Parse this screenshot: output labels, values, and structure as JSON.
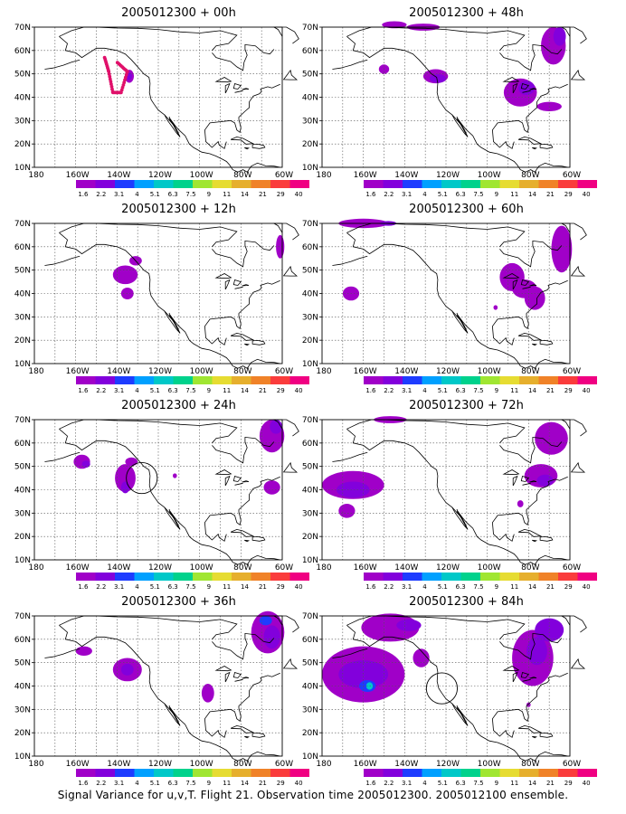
{
  "caption": "Signal Variance for u,v,T. Flight 21. Observation time 2005012300. 2005012100 ensemble.",
  "lat_labels": [
    "70N",
    "60N",
    "50N",
    "40N",
    "30N",
    "20N",
    "10N"
  ],
  "lon_labels": [
    "180",
    "160W",
    "140W",
    "120W",
    "100W",
    "80W",
    "60W"
  ],
  "colorbar": {
    "labels": [
      "1.6",
      "2.2",
      "3.1",
      "4",
      "5.1",
      "6.3",
      "7.5",
      "9",
      "11",
      "14",
      "21",
      "29",
      "40"
    ],
    "colors": [
      "#a000c8",
      "#8200dc",
      "#1e3cff",
      "#00a0ff",
      "#00c8c8",
      "#00d28c",
      "#a0e632",
      "#e6dc32",
      "#e6af2d",
      "#f08228",
      "#fa3c3c",
      "#f00082"
    ]
  },
  "colors": {
    "fill_light": "#a000c8",
    "fill_dark": "#8200dc",
    "fill_blue": "#1e3cff",
    "fill_cyan": "#00c8c8",
    "track": "#e0106a"
  },
  "panels": [
    {
      "title": "2005012300 + 00h"
    },
    {
      "title": "2005012300 + 48h"
    },
    {
      "title": "2005012300 + 12h"
    },
    {
      "title": "2005012300 + 60h"
    },
    {
      "title": "2005012300 + 24h"
    },
    {
      "title": "2005012300 + 72h"
    },
    {
      "title": "2005012300 + 36h"
    },
    {
      "title": "2005012300 + 84h"
    }
  ]
}
